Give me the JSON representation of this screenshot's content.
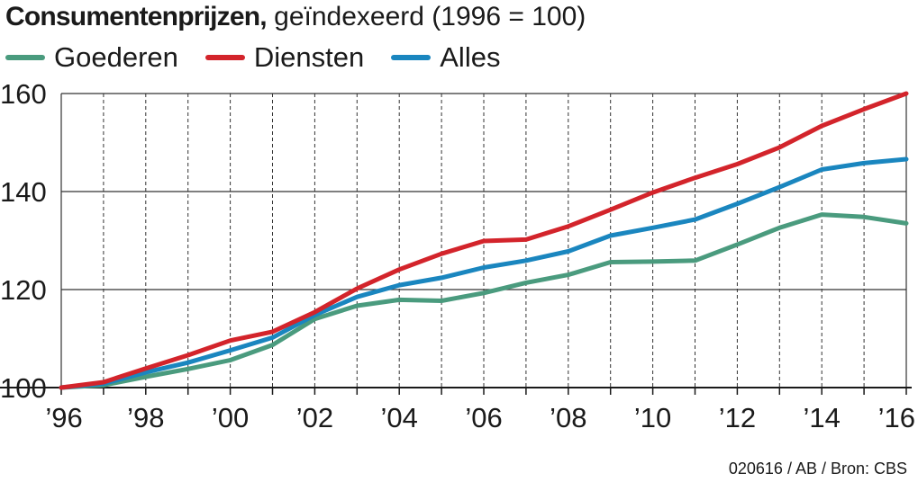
{
  "title": {
    "bold": "Consumentenprijzen,",
    "light": " geïndexeerd (1996 = 100)"
  },
  "legend": [
    {
      "name": "Goederen",
      "color": "#4a9b7e"
    },
    {
      "name": "Diensten",
      "color": "#d3242b"
    },
    {
      "name": "Alles",
      "color": "#1a86bf"
    }
  ],
  "footer": "020616 / AB / Bron: CBS",
  "chart_data": {
    "type": "line",
    "title": "Consumentenprijzen, geïndexeerd (1996 = 100)",
    "xlabel": "",
    "ylabel": "",
    "x": [
      1996,
      1997,
      1998,
      1999,
      2000,
      2001,
      2002,
      2003,
      2004,
      2005,
      2006,
      2007,
      2008,
      2009,
      2010,
      2011,
      2012,
      2013,
      2014,
      2015,
      2016
    ],
    "xticks": [
      1996,
      1998,
      2000,
      2002,
      2004,
      2006,
      2008,
      2010,
      2012,
      2014,
      2016
    ],
    "xtick_labels": [
      "’96",
      "’98",
      "’00",
      "’02",
      "’04",
      "’06",
      "’08",
      "’10",
      "’12",
      "’14",
      "’16"
    ],
    "ylim": [
      100,
      160
    ],
    "yticks": [
      100,
      120,
      140,
      160
    ],
    "ytick_labels": [
      "100",
      "120",
      "140",
      "160"
    ],
    "grid": true,
    "legend_position": "top-left",
    "series": [
      {
        "name": "Goederen",
        "color": "#4a9b7e",
        "values": [
          100.0,
          100.5,
          102.2,
          103.8,
          105.6,
          108.7,
          114.0,
          116.7,
          117.9,
          117.7,
          119.3,
          121.4,
          123.0,
          125.6,
          125.7,
          125.9,
          129.2,
          132.6,
          135.3,
          134.8,
          133.5
        ]
      },
      {
        "name": "Diensten",
        "color": "#d3242b",
        "values": [
          100.0,
          101.1,
          103.9,
          106.6,
          109.6,
          111.4,
          115.4,
          120.2,
          124.1,
          127.3,
          129.9,
          130.2,
          132.9,
          136.3,
          139.8,
          142.8,
          145.6,
          149.0,
          153.4,
          156.8,
          160.0
        ]
      },
      {
        "name": "Alles",
        "color": "#1a86bf",
        "values": [
          100.0,
          100.8,
          103.1,
          105.1,
          107.6,
          110.2,
          114.8,
          118.5,
          120.9,
          122.4,
          124.5,
          125.9,
          127.8,
          131.0,
          132.6,
          134.3,
          137.5,
          140.9,
          144.5,
          145.8,
          146.6
        ]
      }
    ]
  }
}
